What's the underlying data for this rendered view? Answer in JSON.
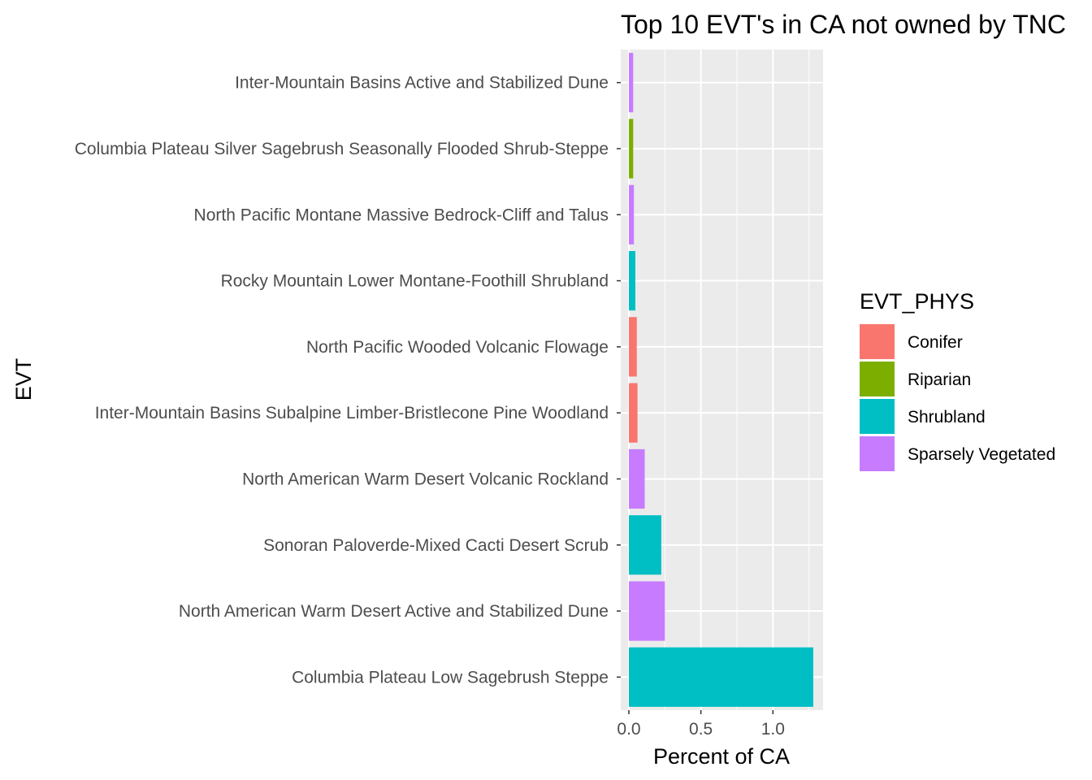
{
  "chart_data": {
    "type": "bar",
    "orientation": "horizontal",
    "title": "Top 10 EVT's in CA not owned by TNC",
    "xlabel": "Percent of CA",
    "ylabel": "EVT",
    "xlim": [
      -0.02,
      1.35
    ],
    "xticks": [
      "0.0",
      "0.5",
      "1.0"
    ],
    "xtick_values": [
      0,
      0.5,
      1.0
    ],
    "grid": true,
    "legend_position": "right",
    "legend_title": "EVT_PHYS",
    "legend": [
      {
        "name": "Conifer",
        "color": "#F8766D"
      },
      {
        "name": "Riparian",
        "color": "#7CAE00"
      },
      {
        "name": "Shrubland",
        "color": "#00BFC4"
      },
      {
        "name": "Sparsely Vegetated",
        "color": "#C77CFF"
      }
    ],
    "categories": [
      "Inter-Mountain Basins Active and Stabilized Dune",
      "Columbia Plateau Silver Sagebrush Seasonally Flooded Shrub-Steppe",
      "North Pacific Montane Massive Bedrock-Cliff and Talus",
      "Rocky Mountain Lower Montane-Foothill Shrubland",
      "North Pacific Wooded Volcanic Flowage",
      "Inter-Mountain Basins Subalpine Limber-Bristlecone Pine Woodland",
      "North American Warm Desert Volcanic Rockland",
      "Sonoran Paloverde-Mixed Cacti Desert Scrub",
      "North American Warm Desert Active and Stabilized Dune",
      "Columbia Plateau Low Sagebrush Steppe"
    ],
    "values": [
      0.03,
      0.03,
      0.035,
      0.045,
      0.055,
      0.06,
      0.11,
      0.225,
      0.25,
      1.28
    ],
    "groups": [
      "Sparsely Vegetated",
      "Riparian",
      "Sparsely Vegetated",
      "Shrubland",
      "Conifer",
      "Conifer",
      "Sparsely Vegetated",
      "Shrubland",
      "Sparsely Vegetated",
      "Shrubland"
    ]
  }
}
